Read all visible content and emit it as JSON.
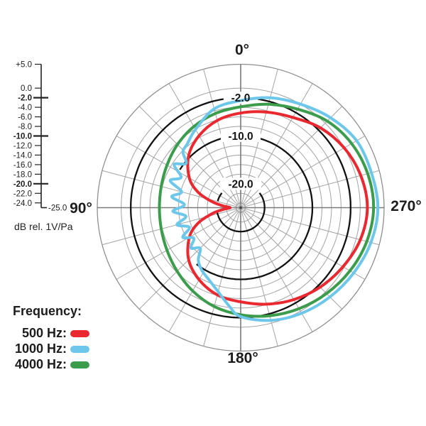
{
  "chart_data": {
    "type": "polar",
    "description": "Microphone directional (polar) pattern: sensitivity in dB rel. 1V/Pa versus angle, for three frequencies",
    "angle_convention": "0 deg at top, counterclockwise: 90 deg left, 180 deg bottom, 270 deg right",
    "angle_labels": [
      {
        "text": "0°",
        "angle": 0
      },
      {
        "text": "90°",
        "angle": 90
      },
      {
        "text": "180°",
        "angle": 180
      },
      {
        "text": "270°",
        "angle": 270
      }
    ],
    "grid": {
      "spoke_step_deg": 15,
      "light_color": "#a3a3a3",
      "axis_color": "#7a7a7a",
      "bold_ring_color": "#111111",
      "outer_ring_color": "#8f8f8f"
    },
    "radial_axis": {
      "unit_caption": "dB rel. 1V/Pa",
      "max_db": 5,
      "min_db": -25,
      "ring_step_db": 2,
      "bold_rings": [
        -2,
        -10,
        -20
      ],
      "ring_labels": [
        {
          "db": -2,
          "text": "-2.0"
        },
        {
          "db": -10,
          "text": "-10.0"
        },
        {
          "db": -20,
          "text": "-20.0"
        }
      ],
      "scale_ticks": [
        {
          "db": 5,
          "text": "+5.0",
          "bold": false
        },
        {
          "db": 0,
          "text": "0.0",
          "bold": false
        },
        {
          "db": -2,
          "text": "-2.0",
          "bold": true
        },
        {
          "db": -4,
          "text": "-4.0",
          "bold": false
        },
        {
          "db": -6,
          "text": "-6.0",
          "bold": false
        },
        {
          "db": -8,
          "text": "-8.0",
          "bold": false
        },
        {
          "db": -10,
          "text": "-10.0",
          "bold": true
        },
        {
          "db": -12,
          "text": "-12.0",
          "bold": false
        },
        {
          "db": -14,
          "text": "-14.0",
          "bold": false
        },
        {
          "db": -16,
          "text": "-16.0",
          "bold": false
        },
        {
          "db": -18,
          "text": "-18.0",
          "bold": false
        },
        {
          "db": -20,
          "text": "-20.0",
          "bold": true
        },
        {
          "db": -22,
          "text": "-22.0",
          "bold": false
        },
        {
          "db": -24,
          "text": "-24.0",
          "bold": false
        }
      ],
      "scale_end_label": "-25.0"
    },
    "series": [
      {
        "name": "500 Hz",
        "color": "#e9282f",
        "points": [
          [
            0,
            -5.2
          ],
          [
            15,
            -6.1
          ],
          [
            30,
            -7.6
          ],
          [
            45,
            -9.6
          ],
          [
            60,
            -12.6
          ],
          [
            70,
            -15.5
          ],
          [
            78,
            -18.8
          ],
          [
            84,
            -21.2
          ],
          [
            90,
            -22.8
          ],
          [
            96,
            -21.2
          ],
          [
            102,
            -18.8
          ],
          [
            110,
            -15.5
          ],
          [
            120,
            -12.6
          ],
          [
            135,
            -9.6
          ],
          [
            150,
            -7.6
          ],
          [
            165,
            -6.1
          ],
          [
            180,
            -5.3
          ],
          [
            195,
            -4.1
          ],
          [
            210,
            -2.8
          ],
          [
            225,
            -1.5
          ],
          [
            240,
            -0.3
          ],
          [
            255,
            0.9
          ],
          [
            270,
            1.5
          ],
          [
            285,
            1.0
          ],
          [
            300,
            0.0
          ],
          [
            315,
            -1.4
          ],
          [
            330,
            -3.2
          ],
          [
            345,
            -4.3
          ]
        ]
      },
      {
        "name": "1000 Hz",
        "color": "#6cc7ea",
        "points": [
          [
            0,
            -2.6
          ],
          [
            15,
            -3.6
          ],
          [
            30,
            -6.1
          ],
          [
            40,
            -7.6
          ],
          [
            46,
            -8.2
          ],
          [
            51,
            -10.3
          ],
          [
            57,
            -8.4
          ],
          [
            63,
            -11.0
          ],
          [
            69,
            -9.2
          ],
          [
            75,
            -12.2
          ],
          [
            81,
            -10.4
          ],
          [
            87,
            -13.2
          ],
          [
            93,
            -10.8
          ],
          [
            99,
            -13.4
          ],
          [
            105,
            -11.2
          ],
          [
            111,
            -13.5
          ],
          [
            117,
            -11.4
          ],
          [
            123,
            -13.3
          ],
          [
            129,
            -11.6
          ],
          [
            135,
            -13.0
          ],
          [
            141,
            -10.9
          ],
          [
            148,
            -9.6
          ],
          [
            157,
            -8.4
          ],
          [
            165,
            -6.8
          ],
          [
            173,
            -4.4
          ],
          [
            180,
            -2.2
          ],
          [
            195,
            -0.6
          ],
          [
            210,
            0.5
          ],
          [
            225,
            1.4
          ],
          [
            240,
            2.3
          ],
          [
            255,
            3.2
          ],
          [
            270,
            3.7
          ],
          [
            285,
            3.3
          ],
          [
            300,
            3.0
          ],
          [
            315,
            1.6
          ],
          [
            330,
            0.0
          ],
          [
            345,
            -1.2
          ]
        ]
      },
      {
        "name": "4000 Hz",
        "color": "#3b9c4c",
        "points": [
          [
            0,
            -3.9
          ],
          [
            15,
            -4.6
          ],
          [
            30,
            -5.4
          ],
          [
            45,
            -6.3
          ],
          [
            60,
            -7.2
          ],
          [
            75,
            -7.8
          ],
          [
            90,
            -8.0
          ],
          [
            105,
            -7.8
          ],
          [
            120,
            -7.2
          ],
          [
            135,
            -6.2
          ],
          [
            150,
            -4.9
          ],
          [
            165,
            -3.6
          ],
          [
            180,
            -2.6
          ],
          [
            195,
            -1.6
          ],
          [
            210,
            -0.6
          ],
          [
            225,
            0.4
          ],
          [
            240,
            1.4
          ],
          [
            255,
            2.3
          ],
          [
            270,
            2.8
          ],
          [
            285,
            2.5
          ],
          [
            300,
            1.8
          ],
          [
            315,
            0.6
          ],
          [
            330,
            -1.2
          ],
          [
            345,
            -2.6
          ]
        ]
      }
    ]
  },
  "legend": {
    "title": "Frequency:",
    "items": [
      {
        "label": "500 Hz:",
        "color": "#e9282f"
      },
      {
        "label": "1000 Hz:",
        "color": "#6cc7ea"
      },
      {
        "label": "4000 Hz:",
        "color": "#3b9c4c"
      }
    ]
  }
}
